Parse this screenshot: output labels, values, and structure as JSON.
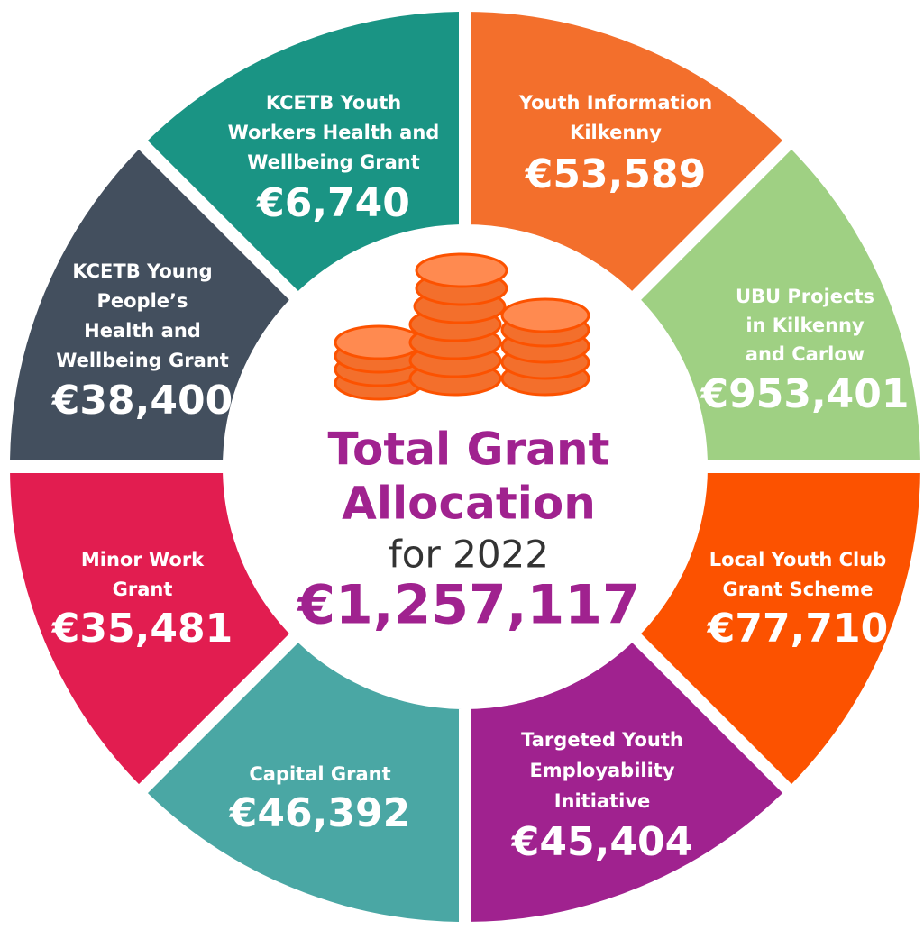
{
  "title_lines": [
    "Total Grant",
    "Allocation"
  ],
  "subtitle": "for 2022",
  "total": "€1,257,117",
  "segments": [
    {
      "label_lines": [
        "Youth Information",
        "Kilkenny"
      ],
      "amount": "€53,589",
      "color": "#f36f2c"
    },
    {
      "label_lines": [
        "UBU Projects",
        "in Kilkenny",
        "and Carlow"
      ],
      "amount": "€953,401",
      "color": "#9fd083"
    },
    {
      "label_lines": [
        "Local Youth Club",
        "Grant Scheme"
      ],
      "amount": "€77,710",
      "color": "#fc5200"
    },
    {
      "label_lines": [
        "Targeted Youth",
        "Employability",
        "Initiative"
      ],
      "amount": "€45,404",
      "color": "#a0228f"
    },
    {
      "label_lines": [
        "Capital Grant"
      ],
      "amount": "€46,392",
      "color": "#4aa7a4"
    },
    {
      "label_lines": [
        "Minor Work",
        "Grant"
      ],
      "amount": "€35,481",
      "color": "#e21d50"
    },
    {
      "label_lines": [
        "KCETB Young",
        "People’s",
        "Health and",
        "Wellbeing Grant"
      ],
      "amount": "€38,400",
      "color": "#434f5e"
    },
    {
      "label_lines": [
        "KCETB Youth",
        "Workers Health and",
        "Wellbeing Grant"
      ],
      "amount": "€6,740",
      "color": "#1a9484"
    }
  ]
}
